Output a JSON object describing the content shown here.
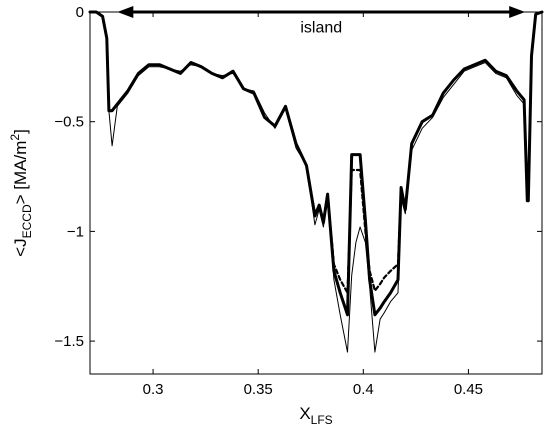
{
  "chart_data": {
    "type": "line",
    "xlabel": {
      "main": "X",
      "sub": "LFS"
    },
    "ylabel": {
      "pre": "<J",
      "sub": "ECCD",
      "mid": "> [MA/m",
      "sup": "2",
      "post": "]"
    },
    "xlim": [
      0.27,
      0.485
    ],
    "ylim": [
      -1.65,
      0
    ],
    "xticks": [
      0.3,
      0.35,
      0.4,
      0.45
    ],
    "xtick_labels": [
      "0.3",
      "0.35",
      "0.4",
      "0.45"
    ],
    "yticks": [
      0,
      -0.5,
      -1,
      -1.5
    ],
    "ytick_labels": [
      "0",
      "−0.5",
      "−1",
      "−1.5"
    ],
    "grid": false,
    "annotation": {
      "text": "island",
      "arrow_from": [
        0.283,
        0.0
      ],
      "arrow_to": [
        0.477,
        0.0
      ],
      "text_at": [
        0.38,
        -0.07
      ]
    },
    "series": [
      {
        "style": "thin",
        "x": [
          0.27,
          0.273,
          0.276,
          0.278,
          0.279,
          0.2805,
          0.283,
          0.288,
          0.293,
          0.298,
          0.303,
          0.308,
          0.313,
          0.318,
          0.323,
          0.328,
          0.333,
          0.338,
          0.343,
          0.348,
          0.353,
          0.358,
          0.363,
          0.368,
          0.373,
          0.377,
          0.379,
          0.381,
          0.383,
          0.386,
          0.389,
          0.3925,
          0.3945,
          0.3965,
          0.3985,
          0.401,
          0.403,
          0.4055,
          0.408,
          0.41,
          0.413,
          0.4165,
          0.418,
          0.42,
          0.423,
          0.428,
          0.433,
          0.438,
          0.443,
          0.448,
          0.453,
          0.458,
          0.463,
          0.468,
          0.473,
          0.4765,
          0.478,
          0.4785,
          0.48,
          0.482,
          0.485
        ],
        "y": [
          0,
          0,
          -0.02,
          -0.12,
          -0.45,
          -0.61,
          -0.43,
          -0.37,
          -0.29,
          -0.25,
          -0.25,
          -0.26,
          -0.27,
          -0.24,
          -0.25,
          -0.28,
          -0.29,
          -0.28,
          -0.35,
          -0.36,
          -0.46,
          -0.53,
          -0.44,
          -0.62,
          -0.7,
          -0.97,
          -0.9,
          -0.98,
          -0.85,
          -1.22,
          -1.38,
          -1.55,
          -1.2,
          -1.05,
          -0.98,
          -1.05,
          -1.25,
          -1.55,
          -1.4,
          -1.37,
          -1.32,
          -1.28,
          -0.85,
          -0.92,
          -0.63,
          -0.53,
          -0.48,
          -0.39,
          -0.33,
          -0.27,
          -0.25,
          -0.23,
          -0.28,
          -0.3,
          -0.38,
          -0.42,
          -0.85,
          -0.85,
          -0.2,
          -0.01,
          0
        ]
      },
      {
        "style": "dashed",
        "x": [
          0.27,
          0.273,
          0.276,
          0.278,
          0.279,
          0.2805,
          0.283,
          0.288,
          0.293,
          0.298,
          0.303,
          0.308,
          0.313,
          0.318,
          0.323,
          0.328,
          0.333,
          0.338,
          0.343,
          0.348,
          0.353,
          0.358,
          0.363,
          0.368,
          0.373,
          0.377,
          0.379,
          0.381,
          0.383,
          0.386,
          0.389,
          0.3925,
          0.3945,
          0.3965,
          0.3985,
          0.401,
          0.403,
          0.4055,
          0.408,
          0.41,
          0.413,
          0.4165,
          0.418,
          0.42,
          0.423,
          0.428,
          0.433,
          0.438,
          0.443,
          0.448,
          0.453,
          0.458,
          0.463,
          0.468,
          0.473,
          0.4765,
          0.478,
          0.4785,
          0.48,
          0.482,
          0.485
        ],
        "y": [
          0,
          0,
          -0.02,
          -0.12,
          -0.45,
          -0.45,
          -0.42,
          -0.36,
          -0.28,
          -0.24,
          -0.24,
          -0.26,
          -0.28,
          -0.23,
          -0.25,
          -0.28,
          -0.3,
          -0.27,
          -0.35,
          -0.37,
          -0.48,
          -0.52,
          -0.43,
          -0.6,
          -0.7,
          -0.92,
          -0.88,
          -0.95,
          -0.83,
          -1.15,
          -1.22,
          -1.28,
          -0.72,
          -0.72,
          -0.72,
          -1.0,
          -1.18,
          -1.27,
          -1.24,
          -1.21,
          -1.18,
          -1.15,
          -0.8,
          -0.9,
          -0.6,
          -0.5,
          -0.47,
          -0.37,
          -0.31,
          -0.26,
          -0.24,
          -0.22,
          -0.27,
          -0.29,
          -0.36,
          -0.4,
          -0.85,
          -0.85,
          -0.2,
          -0.01,
          0
        ]
      },
      {
        "style": "thick",
        "x": [
          0.27,
          0.273,
          0.276,
          0.278,
          0.279,
          0.2805,
          0.283,
          0.288,
          0.293,
          0.298,
          0.303,
          0.308,
          0.313,
          0.318,
          0.323,
          0.328,
          0.333,
          0.338,
          0.343,
          0.348,
          0.353,
          0.358,
          0.363,
          0.368,
          0.373,
          0.377,
          0.379,
          0.381,
          0.383,
          0.386,
          0.389,
          0.3925,
          0.3945,
          0.3965,
          0.3985,
          0.401,
          0.403,
          0.4055,
          0.408,
          0.41,
          0.413,
          0.4165,
          0.418,
          0.42,
          0.423,
          0.428,
          0.433,
          0.438,
          0.443,
          0.448,
          0.453,
          0.458,
          0.463,
          0.468,
          0.473,
          0.4765,
          0.478,
          0.4785,
          0.48,
          0.482,
          0.485
        ],
        "y": [
          0,
          0,
          -0.02,
          -0.12,
          -0.45,
          -0.45,
          -0.42,
          -0.36,
          -0.28,
          -0.24,
          -0.24,
          -0.26,
          -0.28,
          -0.23,
          -0.25,
          -0.28,
          -0.3,
          -0.27,
          -0.35,
          -0.37,
          -0.48,
          -0.52,
          -0.43,
          -0.6,
          -0.7,
          -0.93,
          -0.88,
          -0.96,
          -0.83,
          -1.18,
          -1.28,
          -1.38,
          -0.65,
          -0.65,
          -0.65,
          -0.95,
          -1.22,
          -1.38,
          -1.35,
          -1.32,
          -1.28,
          -1.22,
          -0.8,
          -0.9,
          -0.6,
          -0.5,
          -0.47,
          -0.37,
          -0.31,
          -0.26,
          -0.24,
          -0.22,
          -0.27,
          -0.29,
          -0.36,
          -0.4,
          -0.86,
          -0.86,
          -0.2,
          -0.01,
          0
        ]
      }
    ]
  }
}
